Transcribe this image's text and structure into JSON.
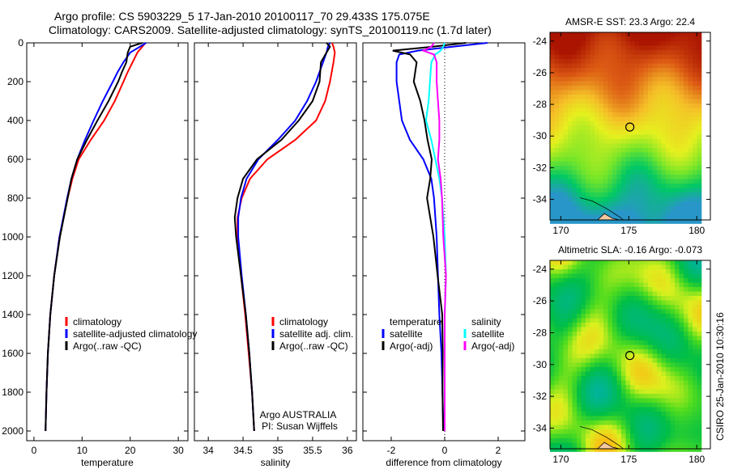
{
  "title_line1": "Argo profile: CS 5903229_5 17-Jan-2010 20100117_70 29.433S 175.075E",
  "title_line2": "Climatology: CARS2009. Satellite-adjusted climatology: synTS_20100119.nc (1.7d later)",
  "side_label": "CSIRO 25-Jan-2010 10:30:16",
  "colors": {
    "clim": "#ff0000",
    "sat": "#0000ff",
    "argo": "#000000",
    "sal_sat": "#00ffff",
    "sal_argo": "#ff00ff"
  },
  "chart_data": [
    {
      "type": "line",
      "panel": "temperature",
      "xlabel": "temperature",
      "ylabel": "",
      "xlim": [
        -1.5,
        32
      ],
      "ylim": [
        2000,
        0
      ],
      "xticks": [
        0,
        10,
        20,
        30
      ],
      "yticks": [
        0,
        200,
        400,
        600,
        800,
        1000,
        1200,
        1400,
        1600,
        1800,
        2000
      ],
      "depth": [
        0,
        20,
        50,
        100,
        150,
        200,
        300,
        400,
        500,
        600,
        700,
        800,
        1000,
        1200,
        1400,
        1600,
        1800,
        2000
      ],
      "legend": [
        "climatology",
        "satellite-adjusted climatology",
        "Argo(..raw -QC)"
      ],
      "series": [
        {
          "name": "climatology",
          "key": "clim",
          "values": [
            23.2,
            22.5,
            21.5,
            20.5,
            19.5,
            18.6,
            16.8,
            14.6,
            11.8,
            9.3,
            8.0,
            7.0,
            5.3,
            4.2,
            3.4,
            2.9,
            2.6,
            2.4
          ]
        },
        {
          "name": "satellite-adjusted climatology",
          "key": "sat",
          "values": [
            23.3,
            22.0,
            20.0,
            18.6,
            17.4,
            16.4,
            14.3,
            12.4,
            10.6,
            9.0,
            7.8,
            6.9,
            5.3,
            4.2,
            3.4,
            2.9,
            2.6,
            2.4
          ]
        },
        {
          "name": "Argo(..raw -QC)",
          "key": "argo",
          "values": [
            22.5,
            20.0,
            19.5,
            19.2,
            18.3,
            17.5,
            15.5,
            13.2,
            11.0,
            9.0,
            7.8,
            7.0,
            5.4,
            4.2,
            3.4,
            2.9,
            2.6,
            2.4
          ]
        }
      ]
    },
    {
      "type": "line",
      "panel": "salinity",
      "xlabel": "salinity",
      "xlim": [
        33.8,
        36.13
      ],
      "ylim": [
        2000,
        0
      ],
      "xticks": [
        34,
        34.5,
        35,
        35.5,
        36
      ],
      "yticks": [
        0,
        200,
        400,
        600,
        800,
        1000,
        1200,
        1400,
        1600,
        1800,
        2000
      ],
      "depth": [
        0,
        20,
        50,
        100,
        200,
        300,
        400,
        500,
        600,
        700,
        800,
        900,
        1000,
        1200,
        1400,
        1600,
        1800,
        2000
      ],
      "legend": [
        "climatology",
        "satellite adj. clim.",
        "Argo(..raw -QC)"
      ],
      "annotation": [
        "Argo AUSTRALIA",
        "PI: Susan Wijffels"
      ],
      "series": [
        {
          "name": "climatology",
          "key": "clim",
          "values": [
            35.78,
            35.8,
            35.82,
            35.8,
            35.75,
            35.68,
            35.55,
            35.25,
            34.85,
            34.6,
            34.48,
            34.42,
            34.42,
            34.47,
            34.53,
            34.58,
            34.63,
            34.66
          ]
        },
        {
          "name": "satellite adj. clim.",
          "key": "sat",
          "values": [
            35.75,
            35.72,
            35.7,
            35.65,
            35.55,
            35.42,
            35.25,
            35.0,
            34.72,
            34.55,
            34.47,
            34.43,
            34.43,
            34.48,
            34.54,
            34.59,
            34.63,
            34.66
          ]
        },
        {
          "name": "Argo(..raw -QC)",
          "key": "argo",
          "values": [
            35.7,
            35.75,
            35.7,
            35.62,
            35.6,
            35.5,
            35.3,
            35.05,
            34.7,
            34.5,
            34.42,
            34.38,
            34.4,
            34.47,
            34.54,
            34.59,
            34.63,
            34.66
          ]
        }
      ]
    },
    {
      "type": "line",
      "panel": "difference",
      "xlabel": "difference from climatology",
      "xlim": [
        -3.06,
        3.0
      ],
      "ylim": [
        2000,
        0
      ],
      "xticks": [
        -2,
        0,
        2
      ],
      "yticks": [
        0,
        200,
        400,
        600,
        800,
        1000,
        1200,
        1400,
        1600,
        1800,
        2000
      ],
      "depth": [
        0,
        20,
        40,
        60,
        100,
        200,
        300,
        400,
        500,
        600,
        700,
        800,
        1000,
        1200,
        1400,
        1600,
        1800,
        2000
      ],
      "legend_headers": [
        "temperature",
        "salinity"
      ],
      "legend": [
        "satellite",
        "Argo(-adj)",
        "satellite",
        "Argo(-adj)"
      ],
      "series": [
        {
          "name": "temperature satellite",
          "key": "sat",
          "values": [
            1.6,
            0.3,
            -1.0,
            -1.7,
            -1.8,
            -1.8,
            -1.7,
            -1.6,
            -1.3,
            -0.8,
            -0.5,
            -0.4,
            -0.3,
            -0.25,
            -0.2,
            -0.12,
            -0.08,
            -0.05
          ]
        },
        {
          "name": "temperature Argo(-adj)",
          "key": "argo",
          "values": [
            0.8,
            -0.5,
            -2.0,
            -1.3,
            -1.0,
            -1.1,
            -0.9,
            -0.8,
            -0.7,
            -0.5,
            -0.5,
            -0.6,
            -0.4,
            -0.3,
            -0.15,
            -0.1,
            -0.05,
            0.0
          ]
        },
        {
          "name": "salinity satellite",
          "key": "sal_sat",
          "values": [
            0.0,
            -0.05,
            -0.15,
            -0.35,
            -0.5,
            -0.55,
            -0.6,
            -0.7,
            -0.5,
            -0.35,
            -0.2,
            -0.1,
            0.0,
            0.05,
            0.0,
            0.0,
            0.0,
            0.0
          ]
        },
        {
          "name": "salinity Argo(-adj)",
          "key": "sal_argo",
          "values": [
            -0.4,
            -0.5,
            -0.8,
            -0.4,
            -0.3,
            -0.3,
            -0.25,
            -0.2,
            -0.2,
            -0.25,
            -0.15,
            -0.1,
            -0.05,
            0.05,
            0.0,
            0.0,
            0.0,
            0.0
          ]
        }
      ]
    },
    {
      "type": "heatmap",
      "panel": "sst-map",
      "title": "AMSR-E SST: 23.3 Argo: 22.4",
      "xlim": [
        169.2,
        181.0
      ],
      "ylim": [
        -35.3,
        -23.45
      ],
      "xticks": [
        170,
        175,
        180
      ],
      "yticks": [
        -24,
        -26,
        -28,
        -30,
        -32,
        -34
      ],
      "marker": {
        "lon": 175.075,
        "lat": -29.433
      }
    },
    {
      "type": "heatmap",
      "panel": "sla-map",
      "title": "Altimetric SLA: -0.16 Argo: -0.073",
      "xlim": [
        169.2,
        181.0
      ],
      "ylim": [
        -35.3,
        -23.45
      ],
      "xticks": [
        170,
        175,
        180
      ],
      "yticks": [
        -24,
        -26,
        -28,
        -30,
        -32,
        -34
      ],
      "marker": {
        "lon": 175.075,
        "lat": -29.433
      }
    }
  ]
}
